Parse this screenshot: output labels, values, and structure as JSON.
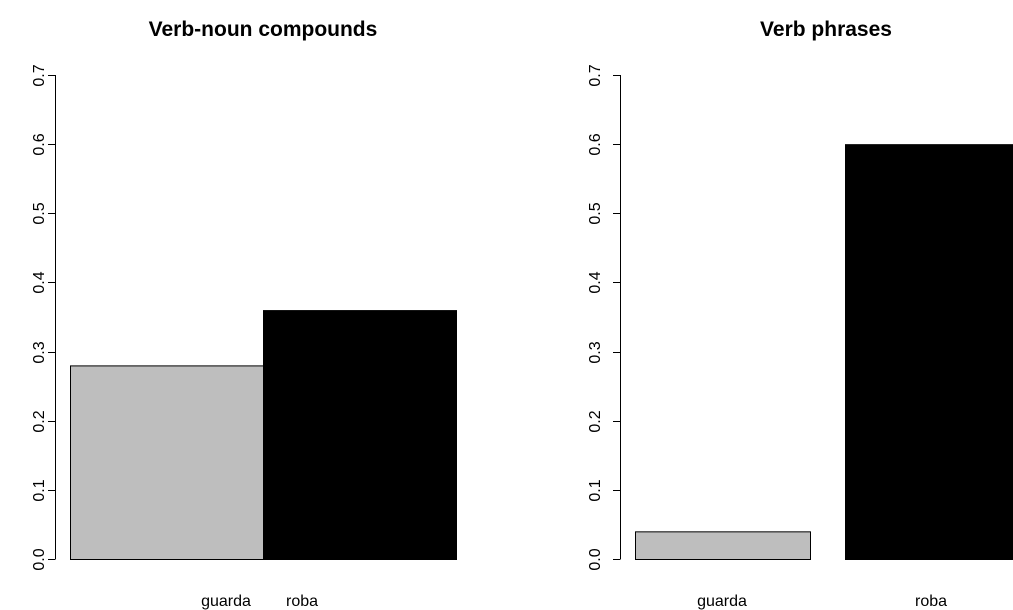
{
  "colors": {
    "background": "#ffffff",
    "guarda_bar": "#bebebe",
    "roba_bar": "#000000",
    "bar_border": "#000000",
    "axis": "#000000",
    "text": "#000000"
  },
  "chart_data": [
    {
      "type": "bar",
      "title": "Verb-noun compounds",
      "xlabel": "",
      "ylabel": "",
      "categories": [
        "guarda",
        "roba"
      ],
      "values": [
        0.28,
        0.36
      ],
      "ylim": [
        0,
        0.7
      ],
      "yticks": [
        0.0,
        0.1,
        0.2,
        0.3,
        0.4,
        0.5,
        0.6,
        0.7
      ],
      "ytick_labels": [
        "0.0",
        "0.1",
        "0.2",
        "0.3",
        "0.4",
        "0.5",
        "0.6",
        "0.7"
      ],
      "bar_colors": [
        "#bebebe",
        "#000000"
      ],
      "grid": false,
      "legend": "none"
    },
    {
      "type": "bar",
      "title": "Verb phrases",
      "xlabel": "",
      "ylabel": "",
      "categories": [
        "guarda",
        "roba"
      ],
      "values": [
        0.04,
        0.6
      ],
      "ylim": [
        0,
        0.7
      ],
      "yticks": [
        0.0,
        0.1,
        0.2,
        0.3,
        0.4,
        0.5,
        0.6,
        0.7
      ],
      "ytick_labels": [
        "0.0",
        "0.1",
        "0.2",
        "0.3",
        "0.4",
        "0.5",
        "0.6",
        "0.7"
      ],
      "bar_colors": [
        "#bebebe",
        "#000000"
      ],
      "grid": false,
      "legend": "none"
    }
  ]
}
